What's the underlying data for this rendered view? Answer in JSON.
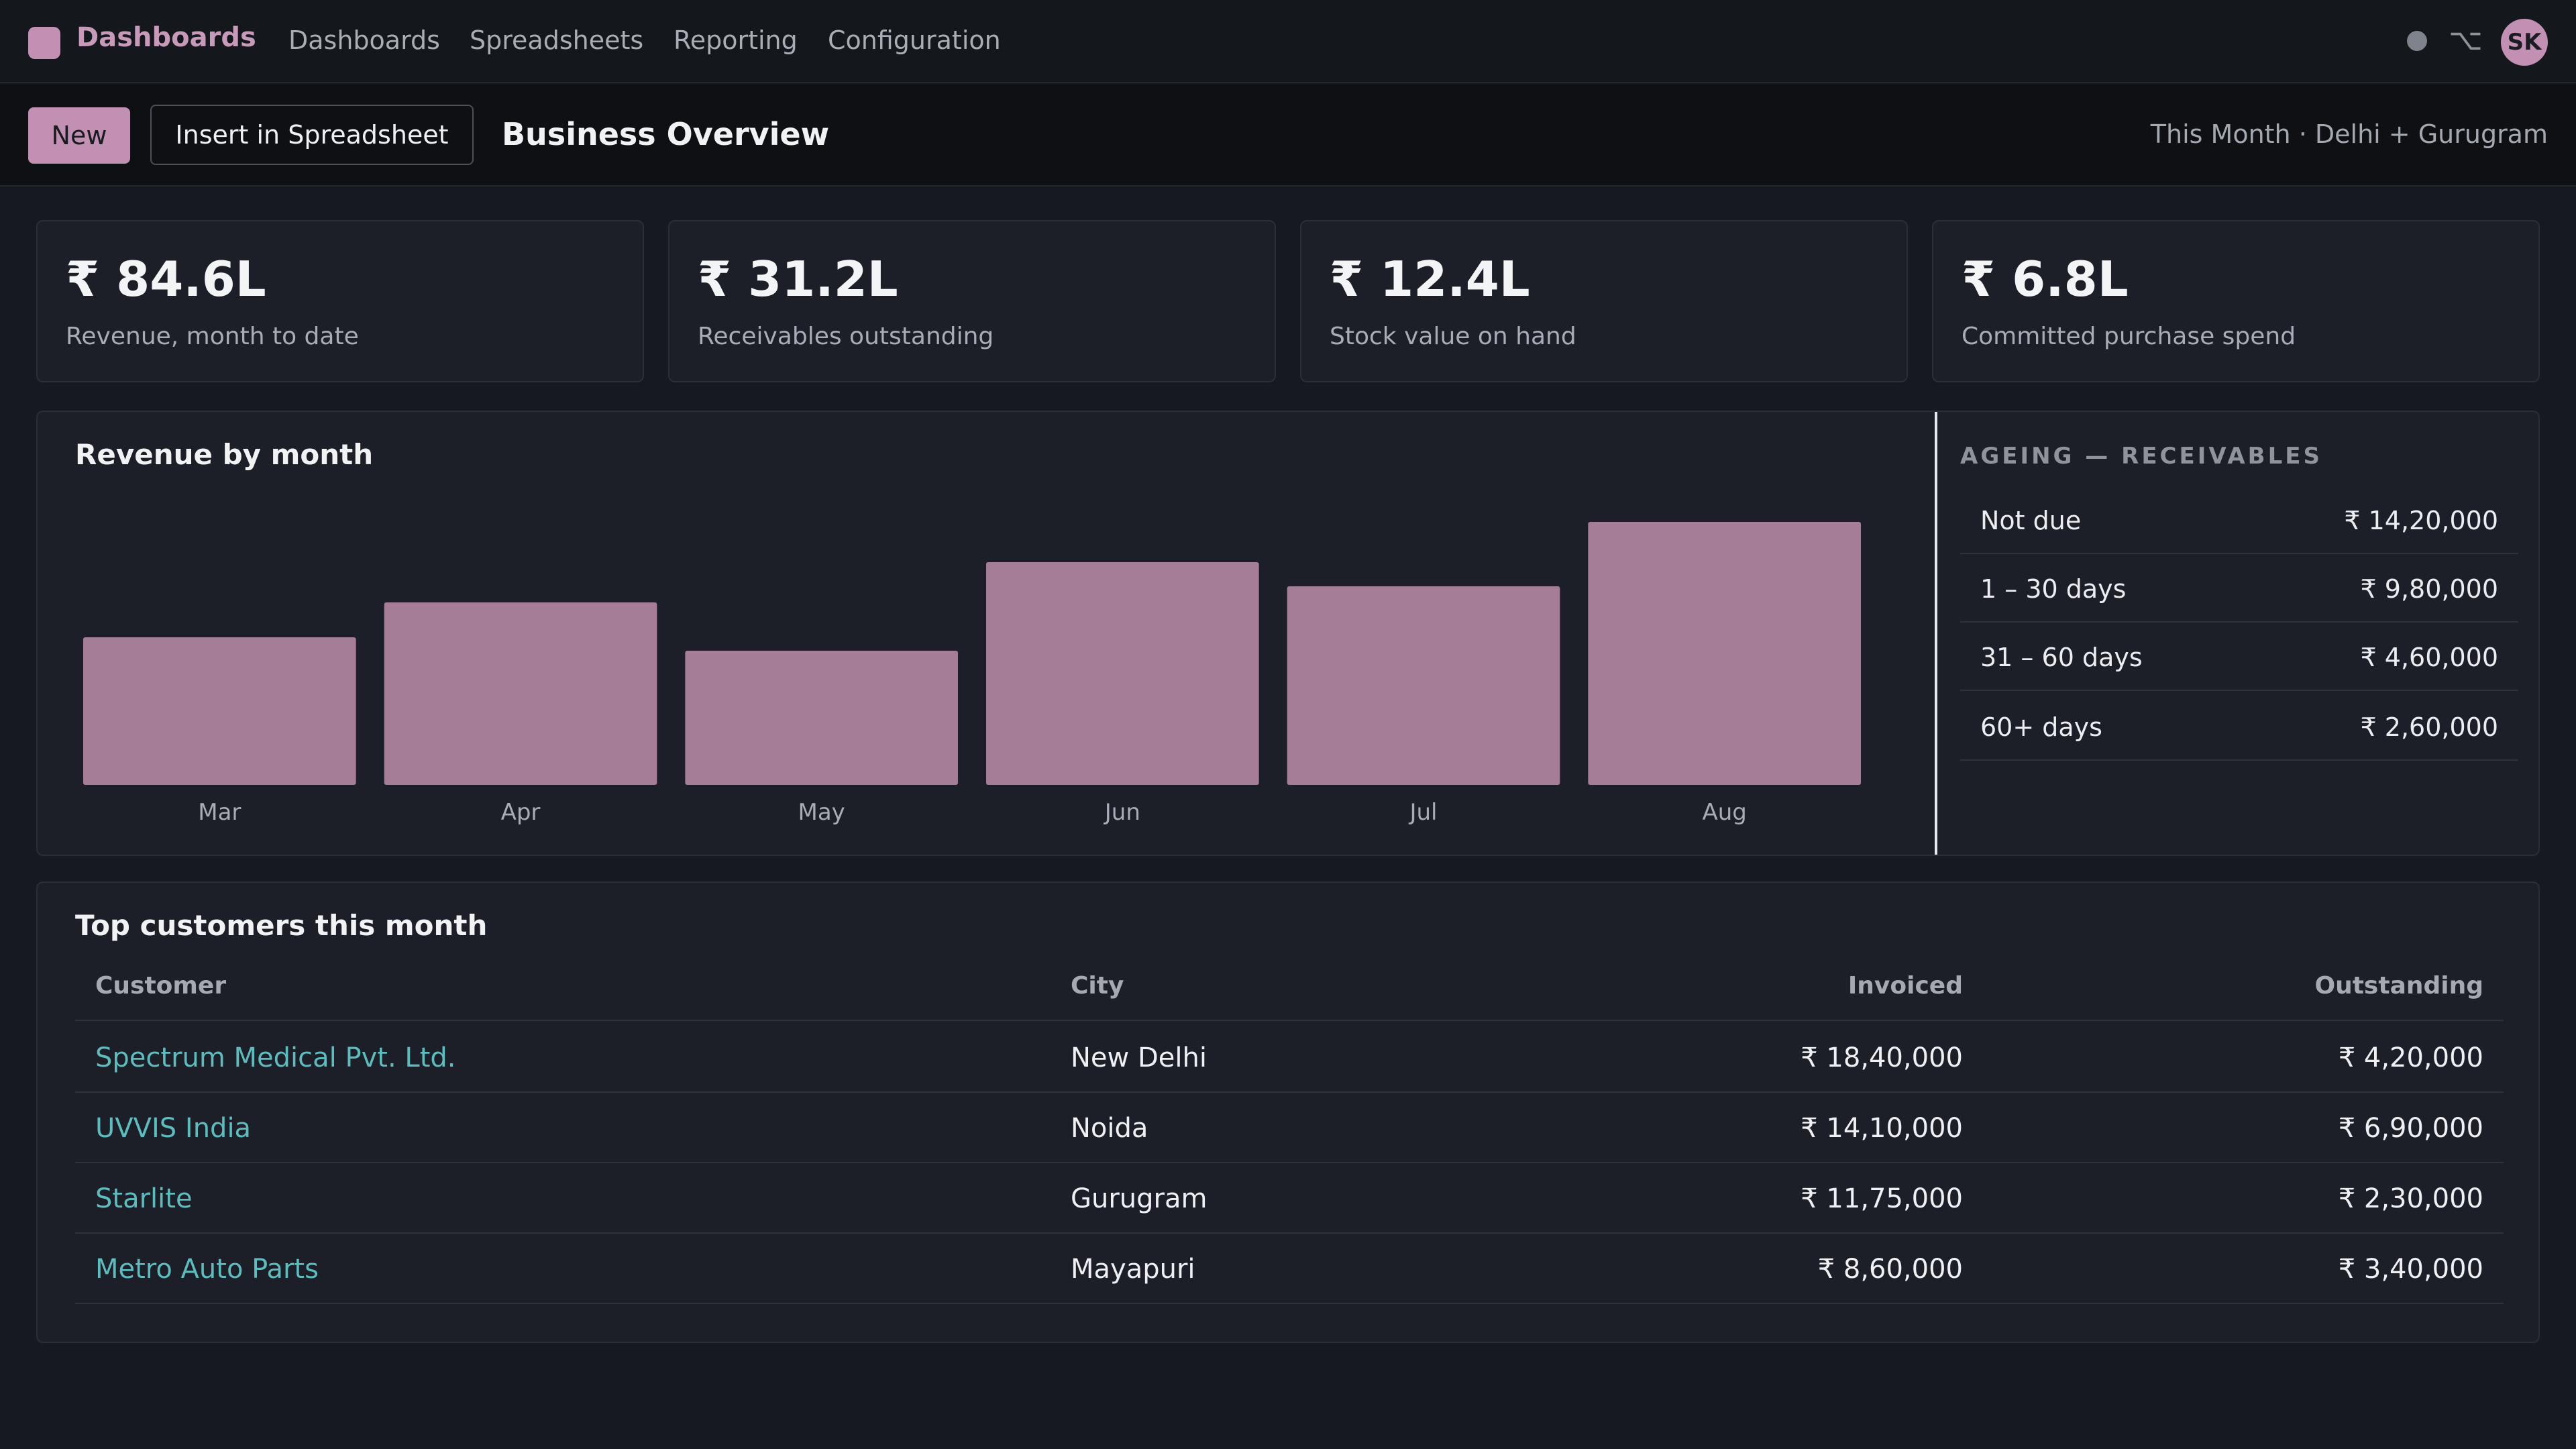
{
  "nav": {
    "brand": "Dashboards",
    "links": [
      "Dashboards",
      "Spreadsheets",
      "Reporting",
      "Configuration"
    ],
    "option_glyph": "⌥",
    "avatar_initials": "SK",
    "icons": [
      "app-logo-icon",
      "status-dot-icon",
      "option-key-icon"
    ]
  },
  "toolbar": {
    "new_label": "New",
    "insert_label": "Insert in Spreadsheet",
    "title": "Business Overview",
    "scope": "This Month · Delhi + Gurugram"
  },
  "kpis": [
    {
      "value": "₹ 84.6L",
      "label": "Revenue, month to date"
    },
    {
      "value": "₹ 31.2L",
      "label": "Receivables outstanding"
    },
    {
      "value": "₹ 12.4L",
      "label": "Stock value on hand"
    },
    {
      "value": "₹ 6.8L",
      "label": "Committed purchase spend"
    }
  ],
  "chart_data": {
    "type": "bar",
    "title": "Revenue by month",
    "categories": [
      "Mar",
      "Apr",
      "May",
      "Jun",
      "Jul",
      "Aug"
    ],
    "values": [
      55,
      68,
      50,
      83,
      74,
      98
    ],
    "ylim": [
      0,
      100
    ],
    "grid": false,
    "bar_color": "#a57d96"
  },
  "ageing": {
    "title": "AGEING — RECEIVABLES",
    "rows": [
      {
        "label": "Not due",
        "amount": "₹ 14,20,000"
      },
      {
        "label": "1 – 30 days",
        "amount": "₹ 9,80,000"
      },
      {
        "label": "31 – 60 days",
        "amount": "₹ 4,60,000"
      },
      {
        "label": "60+ days",
        "amount": "₹ 2,60,000"
      }
    ]
  },
  "customers": {
    "title": "Top customers this month",
    "columns": [
      "Customer",
      "City",
      "Invoiced",
      "Outstanding"
    ],
    "rows": [
      {
        "customer": "Spectrum Medical Pvt. Ltd.",
        "city": "New Delhi",
        "invoiced": "₹ 18,40,000",
        "outstanding": "₹ 4,20,000"
      },
      {
        "customer": "UVVIS India",
        "city": "Noida",
        "invoiced": "₹ 14,10,000",
        "outstanding": "₹ 6,90,000"
      },
      {
        "customer": "Starlite",
        "city": "Gurugram",
        "invoiced": "₹ 11,75,000",
        "outstanding": "₹ 2,30,000"
      },
      {
        "customer": "Metro Auto Parts",
        "city": "Mayapuri",
        "invoiced": "₹ 8,60,000",
        "outstanding": "₹ 3,40,000"
      }
    ]
  },
  "colors": {
    "accent": "#c290b2",
    "link": "#5cbcbe",
    "background": "#161920",
    "panel": "#1c1f27"
  }
}
